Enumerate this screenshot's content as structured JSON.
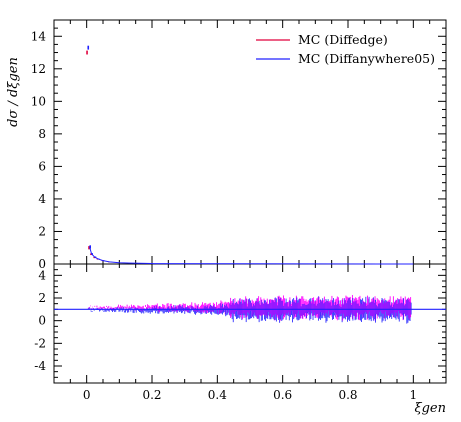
{
  "chart_data": {
    "type": "scatter",
    "legend": {
      "placement": "top-right",
      "entries": [
        {
          "name": "MC (Diffedge)",
          "color": "#e0003c"
        },
        {
          "name": "MC (Diffanywhere05)",
          "color": "#2020ff"
        }
      ]
    },
    "main_panel": {
      "ylabel": "dσ / dξgen",
      "ylim": [
        0,
        15
      ],
      "yticks": [
        "0",
        "2",
        "4",
        "6",
        "8",
        "10",
        "12",
        "14"
      ],
      "series": [
        {
          "name": "MC (Diffedge)",
          "color": "#e0003c",
          "points": [
            {
              "x": 0.003,
              "y": 13.0,
              "err": 0.12
            },
            {
              "x": 0.009,
              "y": 1.0,
              "err": 0.1
            },
            {
              "x": 0.015,
              "y": 0.6,
              "err": 0.05
            },
            {
              "x": 0.025,
              "y": 0.4,
              "err": 0.04
            },
            {
              "x": 0.035,
              "y": 0.3,
              "err": 0.03
            },
            {
              "x": 0.05,
              "y": 0.2,
              "err": 0.02
            },
            {
              "x": 0.07,
              "y": 0.12,
              "err": 0.02
            },
            {
              "x": 0.1,
              "y": 0.08,
              "err": 0.01
            },
            {
              "x": 0.14,
              "y": 0.05,
              "err": 0.01
            },
            {
              "x": 0.2,
              "y": 0.03,
              "err": 0.01
            }
          ]
        },
        {
          "name": "MC (Diffanywhere05)",
          "color": "#2020ff",
          "points": [
            {
              "x": 0.003,
              "y": 13.3,
              "err": 0.12
            },
            {
              "x": 0.009,
              "y": 1.05,
              "err": 0.1
            },
            {
              "x": 0.015,
              "y": 0.62,
              "err": 0.05
            },
            {
              "x": 0.025,
              "y": 0.42,
              "err": 0.04
            },
            {
              "x": 0.035,
              "y": 0.31,
              "err": 0.03
            },
            {
              "x": 0.05,
              "y": 0.21,
              "err": 0.02
            },
            {
              "x": 0.07,
              "y": 0.13,
              "err": 0.02
            },
            {
              "x": 0.1,
              "y": 0.08,
              "err": 0.01
            },
            {
              "x": 0.14,
              "y": 0.05,
              "err": 0.01
            },
            {
              "x": 0.2,
              "y": 0.03,
              "err": 0.01
            }
          ]
        }
      ]
    },
    "ratio_panel": {
      "ylim": [
        -5.5,
        5
      ],
      "yticks": [
        "-4",
        "-2",
        "0",
        "2",
        "4"
      ],
      "reference_value": 1,
      "band_center_diffedge": 1.15,
      "band_center_diffanywhere05": 0.95
    },
    "x_axis": {
      "label": "ξgen",
      "xlim": [
        -0.1,
        1.1
      ],
      "xticks": [
        "0",
        "0.2",
        "0.4",
        "0.6",
        "0.8",
        "1"
      ]
    }
  }
}
